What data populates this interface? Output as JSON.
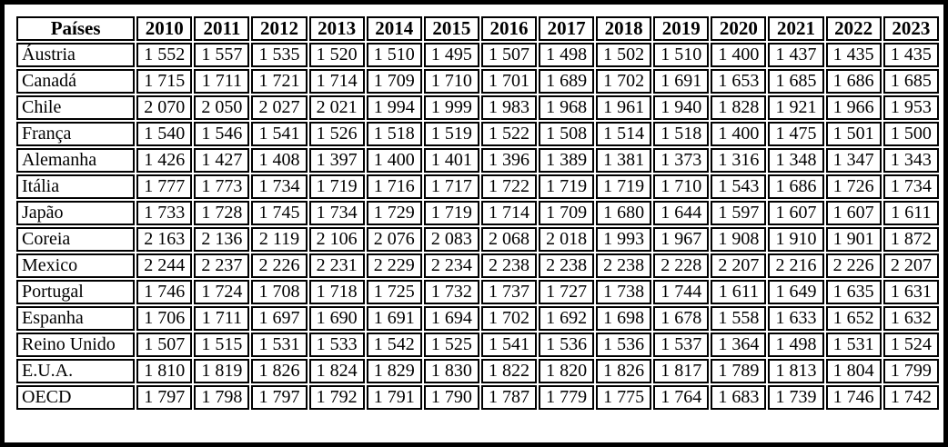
{
  "chart_data": {
    "type": "table",
    "corner_header": "Países",
    "columns": [
      "2010",
      "2011",
      "2012",
      "2013",
      "2014",
      "2015",
      "2016",
      "2017",
      "2018",
      "2019",
      "2020",
      "2021",
      "2022",
      "2023"
    ],
    "rows": [
      {
        "label": "Áustria",
        "values": [
          "1 552",
          "1 557",
          "1 535",
          "1 520",
          "1 510",
          "1 495",
          "1 507",
          "1 498",
          "1 502",
          "1 510",
          "1 400",
          "1 437",
          "1 435",
          "1 435"
        ]
      },
      {
        "label": "Canadá",
        "values": [
          "1 715",
          "1 711",
          "1 721",
          "1 714",
          "1 709",
          "1 710",
          "1 701",
          "1 689",
          "1 702",
          "1 691",
          "1 653",
          "1 685",
          "1 686",
          "1 685"
        ]
      },
      {
        "label": "Chile",
        "values": [
          "2 070",
          "2 050",
          "2 027",
          "2 021",
          "1 994",
          "1 999",
          "1 983",
          "1 968",
          "1 961",
          "1 940",
          "1 828",
          "1 921",
          "1 966",
          "1 953"
        ]
      },
      {
        "label": "França",
        "values": [
          "1 540",
          "1 546",
          "1 541",
          "1 526",
          "1 518",
          "1 519",
          "1 522",
          "1 508",
          "1 514",
          "1 518",
          "1 400",
          "1 475",
          "1 501",
          "1 500"
        ]
      },
      {
        "label": "Alemanha",
        "values": [
          "1 426",
          "1 427",
          "1 408",
          "1 397",
          "1 400",
          "1 401",
          "1 396",
          "1 389",
          "1 381",
          "1 373",
          "1 316",
          "1 348",
          "1 347",
          "1 343"
        ]
      },
      {
        "label": "Itália",
        "values": [
          "1 777",
          "1 773",
          "1 734",
          "1 719",
          "1 716",
          "1 717",
          "1 722",
          "1 719",
          "1 719",
          "1 710",
          "1 543",
          "1 686",
          "1 726",
          "1 734"
        ]
      },
      {
        "label": "Japão",
        "values": [
          "1 733",
          "1 728",
          "1 745",
          "1 734",
          "1 729",
          "1 719",
          "1 714",
          "1 709",
          "1 680",
          "1 644",
          "1 597",
          "1 607",
          "1 607",
          "1 611"
        ]
      },
      {
        "label": "Coreia",
        "values": [
          "2 163",
          "2 136",
          "2 119",
          "2 106",
          "2 076",
          "2 083",
          "2 068",
          "2 018",
          "1 993",
          "1 967",
          "1 908",
          "1 910",
          "1 901",
          "1 872"
        ]
      },
      {
        "label": "Mexico",
        "values": [
          "2 244",
          "2 237",
          "2 226",
          "2 231",
          "2 229",
          "2 234",
          "2 238",
          "2 238",
          "2 238",
          "2 228",
          "2 207",
          "2 216",
          "2 226",
          "2 207"
        ]
      },
      {
        "label": "Portugal",
        "values": [
          "1 746",
          "1 724",
          "1 708",
          "1 718",
          "1 725",
          "1 732",
          "1 737",
          "1 727",
          "1 738",
          "1 744",
          "1 611",
          "1 649",
          "1 635",
          "1 631"
        ]
      },
      {
        "label": "Espanha",
        "values": [
          "1 706",
          "1 711",
          "1 697",
          "1 690",
          "1 691",
          "1 694",
          "1 702",
          "1 692",
          "1 698",
          "1 678",
          "1 558",
          "1 633",
          "1 652",
          "1 632"
        ]
      },
      {
        "label": "Reino Unido",
        "values": [
          "1 507",
          "1 515",
          "1 531",
          "1 533",
          "1 542",
          "1 525",
          "1 541",
          "1 536",
          "1 536",
          "1 537",
          "1 364",
          "1 498",
          "1 531",
          "1 524"
        ]
      },
      {
        "label": "E.U.A.",
        "values": [
          "1 810",
          "1 819",
          "1 826",
          "1 824",
          "1 829",
          "1 830",
          "1 822",
          "1 820",
          "1 826",
          "1 817",
          "1 789",
          "1 813",
          "1 804",
          "1 799"
        ]
      },
      {
        "label": "OECD",
        "values": [
          "1 797",
          "1 798",
          "1 797",
          "1 792",
          "1 791",
          "1 790",
          "1 787",
          "1 779",
          "1 775",
          "1 764",
          "1 683",
          "1 739",
          "1 746",
          "1 742"
        ]
      }
    ],
    "colors": {
      "text": "#000000",
      "border": "#000000",
      "background": "#ffffff"
    }
  }
}
